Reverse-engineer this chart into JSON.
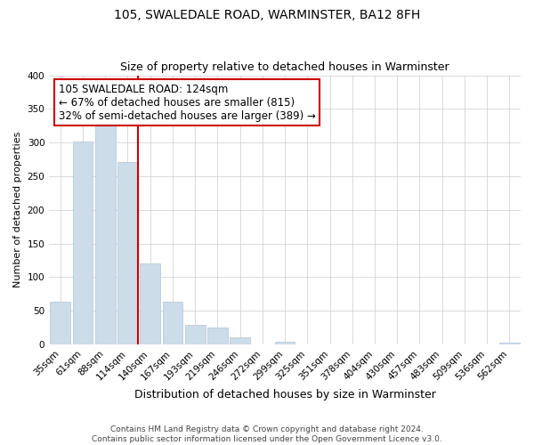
{
  "title": "105, SWALEDALE ROAD, WARMINSTER, BA12 8FH",
  "subtitle": "Size of property relative to detached houses in Warminster",
  "xlabel": "Distribution of detached houses by size in Warminster",
  "ylabel": "Number of detached properties",
  "bar_labels": [
    "35sqm",
    "61sqm",
    "88sqm",
    "114sqm",
    "140sqm",
    "167sqm",
    "193sqm",
    "219sqm",
    "246sqm",
    "272sqm",
    "299sqm",
    "325sqm",
    "351sqm",
    "378sqm",
    "404sqm",
    "430sqm",
    "457sqm",
    "483sqm",
    "509sqm",
    "536sqm",
    "562sqm"
  ],
  "bar_values": [
    63,
    302,
    330,
    271,
    120,
    64,
    29,
    25,
    11,
    0,
    4,
    0,
    0,
    0,
    0,
    0,
    0,
    0,
    0,
    0,
    3
  ],
  "bar_color": "#ccdce8",
  "bar_edge_color": "#b0c4d8",
  "vline_color": "#cc0000",
  "vline_bar_index": 3,
  "annotation_title": "105 SWALEDALE ROAD: 124sqm",
  "annotation_line1": "← 67% of detached houses are smaller (815)",
  "annotation_line2": "32% of semi-detached houses are larger (389) →",
  "annotation_box_color": "#ffffff",
  "annotation_box_edge": "#cc0000",
  "ylim": [
    0,
    400
  ],
  "yticks": [
    0,
    50,
    100,
    150,
    200,
    250,
    300,
    350,
    400
  ],
  "footnote1": "Contains HM Land Registry data © Crown copyright and database right 2024.",
  "footnote2": "Contains public sector information licensed under the Open Government Licence v3.0.",
  "title_fontsize": 10,
  "subtitle_fontsize": 9,
  "xlabel_fontsize": 9,
  "ylabel_fontsize": 8,
  "tick_fontsize": 7.5,
  "annotation_fontsize": 8.5,
  "footnote_fontsize": 6.5
}
